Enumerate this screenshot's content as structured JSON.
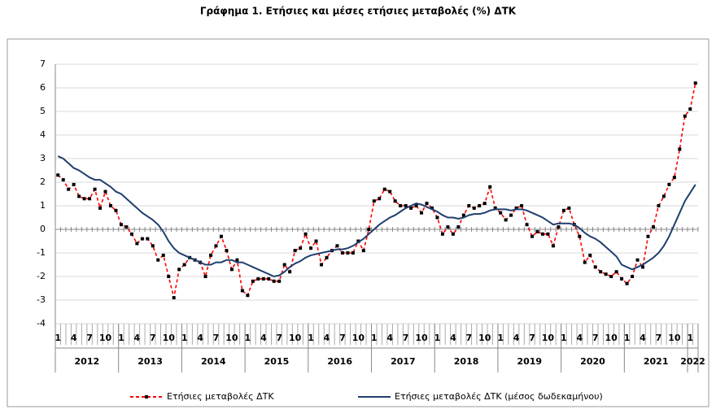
{
  "chart_data": {
    "type": "line",
    "title": "Γράφημα 1. Ετήσιες και μέσες ετήσιες μεταβολές (%) ΔΤΚ",
    "categories": [
      "1",
      null,
      null,
      "4",
      null,
      null,
      "7",
      null,
      null,
      "10",
      null,
      null,
      "1",
      null,
      null,
      "4",
      null,
      null,
      "7",
      null,
      null,
      "10",
      null,
      null,
      "1",
      null,
      null,
      "4",
      null,
      null,
      "7",
      null,
      null,
      "10",
      null,
      null,
      "1",
      null,
      null,
      "4",
      null,
      null,
      "7",
      null,
      null,
      "10",
      null,
      null,
      "1",
      null,
      null,
      "4",
      null,
      null,
      "7",
      null,
      null,
      "10",
      null,
      null,
      "1",
      null,
      null,
      "4",
      null,
      null,
      "7",
      null,
      null,
      "10",
      null,
      null,
      "1",
      null,
      null,
      "4",
      null,
      null,
      "7",
      null,
      null,
      "10",
      null,
      null,
      "1",
      null,
      null,
      "4",
      null,
      null,
      "7",
      null,
      null,
      "10",
      null,
      null,
      "1",
      null,
      null,
      "4",
      null,
      null,
      "7",
      null,
      null,
      "10",
      null,
      null,
      "1",
      null,
      null,
      "4",
      null,
      null,
      "7",
      null,
      null,
      "10",
      null,
      null,
      "1",
      null
    ],
    "year_labels": [
      "2012",
      "2013",
      "2014",
      "2015",
      "2016",
      "2017",
      "2018",
      "2019",
      "2020",
      "2021",
      "2022"
    ],
    "series": [
      {
        "name": "Ετήσιες μεταβολές ΔΤΚ",
        "color": "#ff0000",
        "style": "dashed-markers",
        "values": [
          2.3,
          2.1,
          1.7,
          1.9,
          1.4,
          1.3,
          1.3,
          1.7,
          0.9,
          1.6,
          1.0,
          0.8,
          0.2,
          0.1,
          -0.2,
          -0.6,
          -0.4,
          -0.4,
          -0.7,
          -1.3,
          -1.1,
          -2.0,
          -2.9,
          -1.7,
          -1.5,
          -1.2,
          -1.3,
          -1.4,
          -2.0,
          -1.1,
          -0.7,
          -0.3,
          -0.9,
          -1.7,
          -1.3,
          -2.6,
          -2.8,
          -2.2,
          -2.1,
          -2.1,
          -2.1,
          -2.2,
          -2.2,
          -1.5,
          -1.8,
          -0.9,
          -0.8,
          -0.2,
          -0.8,
          -0.5,
          -1.5,
          -1.2,
          -0.9,
          -0.7,
          -1.0,
          -1.0,
          -1.0,
          -0.5,
          -0.9,
          0.0,
          1.2,
          1.3,
          1.7,
          1.6,
          1.2,
          1.0,
          1.0,
          0.9,
          1.0,
          0.7,
          1.1,
          0.9,
          0.5,
          -0.2,
          0.1,
          -0.2,
          0.1,
          0.6,
          1.0,
          0.9,
          1.0,
          1.1,
          1.8,
          0.9,
          0.7,
          0.4,
          0.6,
          0.9,
          1.0,
          0.2,
          -0.3,
          -0.1,
          -0.2,
          -0.2,
          -0.7,
          0.1,
          0.8,
          0.9,
          0.2,
          -0.3,
          -1.4,
          -1.1,
          -1.6,
          -1.8,
          -1.9,
          -2.0,
          -1.8,
          -2.1,
          -2.3,
          -2.0,
          -1.3,
          -1.6,
          -0.3,
          0.1,
          1.0,
          1.4,
          1.9,
          2.2,
          3.4,
          4.8,
          5.1,
          6.2
        ]
      },
      {
        "name": "Ετήσιες μεταβολές ΔΤΚ (μέσος δωδεκαμήνου)",
        "color": "#1f3f6e",
        "style": "solid",
        "values": [
          3.1,
          3.0,
          2.8,
          2.6,
          2.5,
          2.35,
          2.2,
          2.1,
          2.1,
          1.95,
          1.8,
          1.6,
          1.5,
          1.3,
          1.1,
          0.9,
          0.7,
          0.55,
          0.4,
          0.2,
          -0.1,
          -0.5,
          -0.8,
          -1.0,
          -1.1,
          -1.2,
          -1.3,
          -1.4,
          -1.5,
          -1.5,
          -1.4,
          -1.4,
          -1.3,
          -1.3,
          -1.4,
          -1.4,
          -1.5,
          -1.6,
          -1.7,
          -1.8,
          -1.9,
          -2.0,
          -1.95,
          -1.8,
          -1.6,
          -1.45,
          -1.35,
          -1.2,
          -1.1,
          -1.05,
          -1.0,
          -0.95,
          -0.9,
          -0.85,
          -0.85,
          -0.8,
          -0.7,
          -0.55,
          -0.4,
          -0.2,
          0.0,
          0.2,
          0.35,
          0.5,
          0.6,
          0.75,
          0.9,
          1.0,
          1.1,
          1.05,
          0.95,
          0.85,
          0.75,
          0.6,
          0.5,
          0.5,
          0.45,
          0.5,
          0.6,
          0.65,
          0.65,
          0.7,
          0.8,
          0.85,
          0.85,
          0.85,
          0.8,
          0.85,
          0.85,
          0.8,
          0.7,
          0.6,
          0.5,
          0.35,
          0.2,
          0.25,
          0.25,
          0.25,
          0.2,
          0.05,
          -0.15,
          -0.3,
          -0.4,
          -0.55,
          -0.75,
          -0.95,
          -1.15,
          -1.5,
          -1.6,
          -1.7,
          -1.6,
          -1.5,
          -1.35,
          -1.2,
          -1.0,
          -0.7,
          -0.3,
          0.2,
          0.7,
          1.2,
          1.55,
          1.9
        ]
      }
    ],
    "ylim": [
      -4,
      7
    ],
    "yticks": [
      -4,
      -3,
      -2,
      -1,
      0,
      1,
      2,
      3,
      4,
      5,
      6,
      7
    ],
    "grid": true,
    "legend": "bottom"
  }
}
